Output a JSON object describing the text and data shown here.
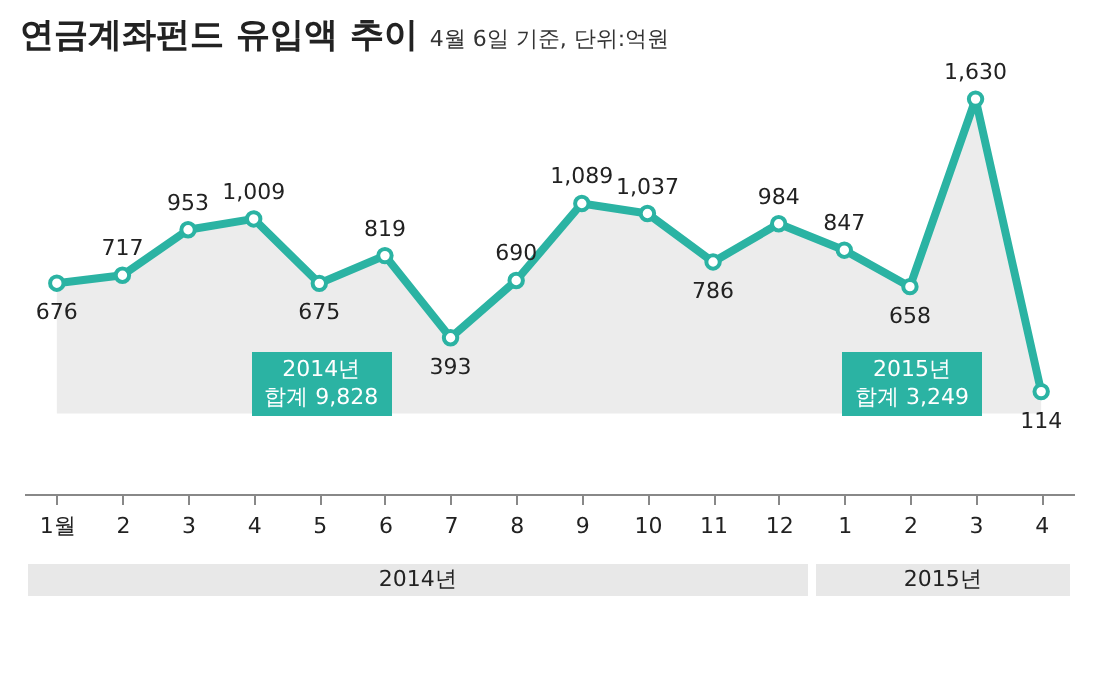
{
  "chart_data": {
    "type": "area",
    "title": "연금계좌펀드 유입액 추이",
    "subtitle": "4월 6일 기준, 단위:억원",
    "categories": [
      "1월",
      "2",
      "3",
      "4",
      "5",
      "6",
      "7",
      "8",
      "9",
      "10",
      "11",
      "12",
      "1",
      "2",
      "3",
      "4"
    ],
    "series": [
      {
        "color": "#2bb3a3",
        "values": [
          676,
          717,
          953,
          1009,
          675,
          819,
          393,
          690,
          1089,
          1037,
          786,
          984,
          847,
          658,
          1630,
          114
        ],
        "value_labels": [
          "676",
          "717",
          "953",
          "1,009",
          "675",
          "819",
          "393",
          "690",
          "1,089",
          "1,037",
          "786",
          "984",
          "847",
          "658",
          "1,630",
          "114"
        ]
      }
    ],
    "marker": "circle",
    "grid": false,
    "annotations": [
      "2014년 합계 9,828",
      "2015년 합계 3,249",
      "2014년",
      "2015년"
    ]
  }
}
